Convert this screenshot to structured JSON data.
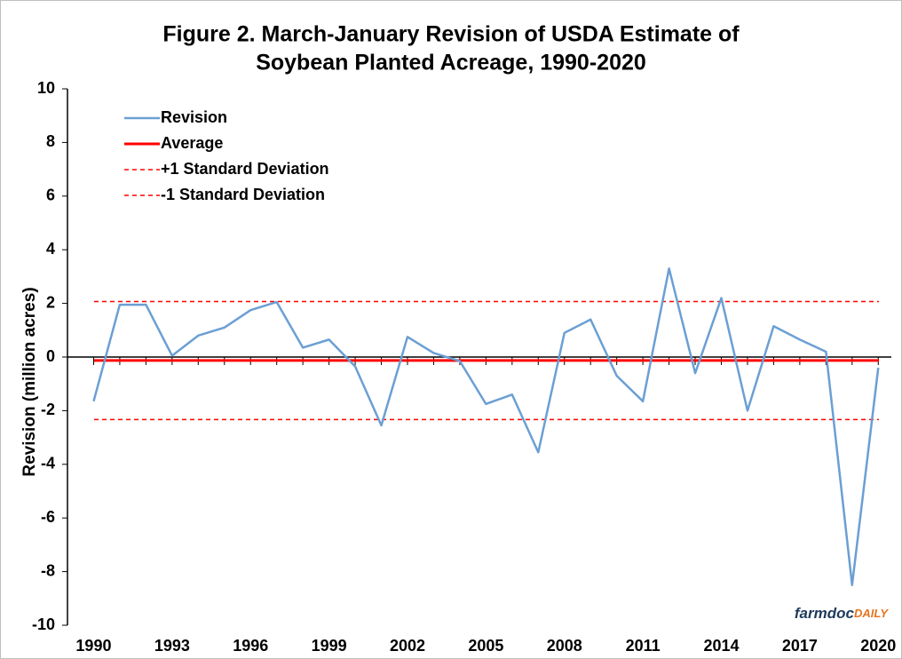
{
  "chart_data": {
    "type": "line",
    "title": "Figure 2. March-January Revision of USDA Estimate of",
    "subtitle": "Soybean Planted Acreage, 1990-2020",
    "y_label": "Revision (million acres)",
    "x": [
      1990,
      1991,
      1992,
      1993,
      1994,
      1995,
      1996,
      1997,
      1998,
      1999,
      2000,
      2001,
      2002,
      2003,
      2004,
      2005,
      2006,
      2007,
      2008,
      2009,
      2010,
      2011,
      2012,
      2013,
      2014,
      2015,
      2016,
      2017,
      2018,
      2019,
      2020
    ],
    "series": [
      {
        "name": "Revision",
        "color": "#6b9fd4",
        "values": [
          -1.65,
          1.95,
          1.95,
          0.05,
          0.8,
          1.1,
          1.75,
          2.05,
          0.35,
          0.65,
          -0.35,
          -2.55,
          0.75,
          0.15,
          -0.15,
          -1.75,
          -1.4,
          -3.55,
          0.9,
          1.4,
          -0.7,
          -1.65,
          3.3,
          -0.6,
          2.2,
          -2.0,
          1.15,
          0.65,
          0.2,
          -8.5,
          -0.4
        ]
      }
    ],
    "reference_lines": [
      {
        "name": "Average",
        "value": -0.13,
        "color": "#ff0000",
        "dashed": false
      },
      {
        "name": "+1 Standard Deviation",
        "value": 2.07,
        "color": "#ff0000",
        "dashed": true
      },
      {
        "name": "-1 Standard Deviation",
        "value": -2.33,
        "color": "#ff0000",
        "dashed": true
      }
    ],
    "xlim": [
      1989,
      2020.5
    ],
    "xticks": [
      1990,
      1993,
      1996,
      1999,
      2002,
      2005,
      2008,
      2011,
      2014,
      2017,
      2020
    ],
    "ylim": [
      -10,
      10
    ],
    "yticks": [
      -10,
      -8,
      -6,
      -4,
      -2,
      0,
      2,
      4,
      6,
      8,
      10
    ],
    "grid": false,
    "legend": "upper left",
    "logo": {
      "main": "farmdoc",
      "accent": "DAILY"
    }
  }
}
